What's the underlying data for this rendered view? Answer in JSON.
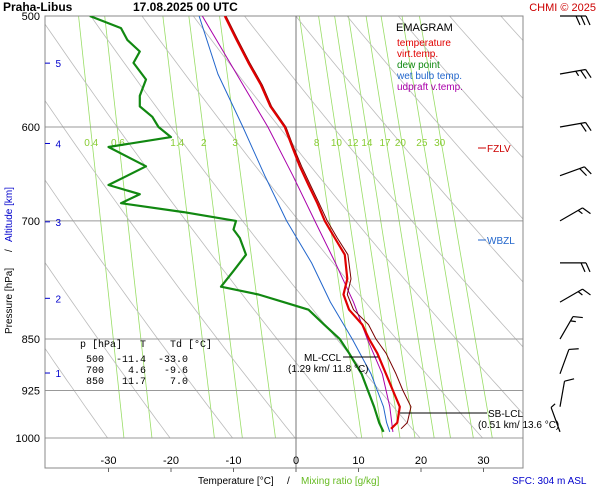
{
  "header": {
    "station": "Praha-Libus",
    "datetime": "17.08.2025 00 UTC",
    "copyright": "CHMI © 2025"
  },
  "legend": {
    "title": "EMAGRAM",
    "items": [
      {
        "label": "temperature",
        "color": "#e00000"
      },
      {
        "label": "virt.temp.",
        "color": "#e00000"
      },
      {
        "label": "dew point",
        "color": "#118811"
      },
      {
        "label": "wet bulb temp.",
        "color": "#2266cc"
      },
      {
        "label": "udpraft v.temp.",
        "color": "#aa00aa"
      }
    ]
  },
  "axes": {
    "xlabel_temp": "Temperature [°C]",
    "xlabel_sep": "/",
    "xlabel_mix": "Mixing ratio [g/kg]",
    "ylabel_pres": "Pressure [hPa]",
    "ylabel_sep": "/",
    "ylabel_alt": "Altitude [km]",
    "sfc": "SFC: 304 m ASL"
  },
  "markers": {
    "fzlv": "FZLV",
    "wbzl": "WBZL",
    "ml_ccl_title": "ML-CCL",
    "ml_ccl_values": "(1.29 km/ 11.8 °C)",
    "sb_lcl_title": "SB-LCL",
    "sb_lcl_values": "(0.51 km/ 13.6 °C)"
  },
  "table": {
    "header": "p [hPa]   T    Td [°C]",
    "rows": [
      "500  -11.4  -33.0",
      "700    4.6   -9.6",
      "850   11.7    7.0"
    ]
  },
  "colors": {
    "temperature": "#e00000",
    "virt_temp": "#7a0000",
    "dew_point": "#118811",
    "wet_bulb": "#2266cc",
    "updraft": "#aa00aa",
    "mixing_lines": "#99dd66",
    "mixing_labels": "#88cc33",
    "dry_adiabats": "#bbbbbb",
    "grid": "#999999",
    "altitude": "#0000cc",
    "fzlv": "#cc0000",
    "wbzl": "#2266cc"
  },
  "chart_data": {
    "type": "line",
    "pressure_ticks": [
      500,
      600,
      700,
      850,
      925,
      1000
    ],
    "temperature_ticks": [
      -30,
      -20,
      -10,
      0,
      10,
      20,
      30
    ],
    "altitude_ticks_km": [
      1,
      2,
      3,
      4,
      5
    ],
    "mixing_ratio_labels": [
      "0.4",
      "0.6",
      "1.4",
      "2",
      "3",
      "8",
      "10",
      "12",
      "14",
      "17",
      "20",
      "25",
      "30"
    ],
    "mixing_ratio_values": [
      0.4,
      0.6,
      1.4,
      2,
      3,
      8,
      10,
      12,
      14,
      17,
      20,
      25,
      30
    ],
    "xlim": [
      -38,
      34
    ],
    "ylim": [
      1000,
      500
    ],
    "y_scale": "log",
    "series": [
      {
        "name": "temperature",
        "points": [
          [
            500,
            -11.4
          ],
          [
            520,
            -9.5
          ],
          [
            540,
            -7.6
          ],
          [
            560,
            -5.6
          ],
          [
            580,
            -4.1
          ],
          [
            600,
            -1.8
          ],
          [
            620,
            -0.6
          ],
          [
            640,
            0.6
          ],
          [
            660,
            2.0
          ],
          [
            680,
            3.4
          ],
          [
            700,
            4.6
          ],
          [
            720,
            6.2
          ],
          [
            740,
            7.8
          ],
          [
            770,
            8.2
          ],
          [
            790,
            7.6
          ],
          [
            810,
            8.5
          ],
          [
            830,
            10.6
          ],
          [
            850,
            11.7
          ],
          [
            870,
            13.0
          ],
          [
            900,
            14.4
          ],
          [
            925,
            15.5
          ],
          [
            950,
            16.6
          ],
          [
            975,
            16.2
          ],
          [
            985,
            15.2
          ]
        ]
      },
      {
        "name": "virt.temp.",
        "points": [
          [
            500,
            -11.2
          ],
          [
            520,
            -9.3
          ],
          [
            540,
            -7.4
          ],
          [
            560,
            -5.4
          ],
          [
            580,
            -3.9
          ],
          [
            600,
            -1.6
          ],
          [
            620,
            -0.4
          ],
          [
            640,
            0.9
          ],
          [
            660,
            2.3
          ],
          [
            680,
            3.7
          ],
          [
            700,
            5.0
          ],
          [
            720,
            6.6
          ],
          [
            740,
            8.3
          ],
          [
            770,
            8.8
          ],
          [
            790,
            8.2
          ],
          [
            810,
            9.2
          ],
          [
            830,
            11.6
          ],
          [
            850,
            12.8
          ],
          [
            870,
            14.4
          ],
          [
            900,
            16.0
          ],
          [
            925,
            17.1
          ],
          [
            950,
            18.4
          ],
          [
            975,
            17.8
          ],
          [
            985,
            16.8
          ]
        ]
      },
      {
        "name": "dew point",
        "points": [
          [
            500,
            -33.0
          ],
          [
            510,
            -28.0
          ],
          [
            520,
            -27.0
          ],
          [
            530,
            -25.0
          ],
          [
            540,
            -26.0
          ],
          [
            555,
            -24.0
          ],
          [
            570,
            -25.0
          ],
          [
            580,
            -25.0
          ],
          [
            590,
            -23.0
          ],
          [
            600,
            -22.0
          ],
          [
            610,
            -20.0
          ],
          [
            620,
            -30.0
          ],
          [
            630,
            -27.0
          ],
          [
            640,
            -24.0
          ],
          [
            650,
            -27.0
          ],
          [
            660,
            -30.0
          ],
          [
            670,
            -25.0
          ],
          [
            680,
            -28.0
          ],
          [
            690,
            -18.0
          ],
          [
            700,
            -9.6
          ],
          [
            710,
            -10.0
          ],
          [
            720,
            -9.0
          ],
          [
            740,
            -8.0
          ],
          [
            760,
            -10.0
          ],
          [
            780,
            -12.0
          ],
          [
            790,
            -6.0
          ],
          [
            800,
            -2.0
          ],
          [
            810,
            2.0
          ],
          [
            830,
            4.5
          ],
          [
            850,
            7.0
          ],
          [
            870,
            8.5
          ],
          [
            900,
            10.5
          ],
          [
            925,
            11.5
          ],
          [
            950,
            12.5
          ],
          [
            975,
            13.3
          ],
          [
            990,
            14.0
          ]
        ]
      },
      {
        "name": "wet bulb temp.",
        "points": [
          [
            500,
            -15.5
          ],
          [
            550,
            -12.5
          ],
          [
            600,
            -8.5
          ],
          [
            650,
            -5.0
          ],
          [
            700,
            -1.5
          ],
          [
            750,
            2.5
          ],
          [
            800,
            5.5
          ],
          [
            850,
            9.0
          ],
          [
            900,
            12.0
          ],
          [
            925,
            13.0
          ],
          [
            950,
            14.0
          ],
          [
            975,
            14.5
          ],
          [
            990,
            15.0
          ]
        ]
      },
      {
        "name": "udpraft v.temp.",
        "points": [
          [
            500,
            -15.0
          ],
          [
            550,
            -9.5
          ],
          [
            600,
            -4.5
          ],
          [
            650,
            -0.5
          ],
          [
            700,
            3.0
          ],
          [
            750,
            6.3
          ],
          [
            800,
            9.2
          ],
          [
            850,
            11.4
          ],
          [
            900,
            13.8
          ],
          [
            950,
            15.0
          ],
          [
            990,
            15.5
          ]
        ]
      }
    ],
    "wind_barbs": [
      {
        "p": 500,
        "dir": 270,
        "kt": 30
      },
      {
        "p": 550,
        "dir": 260,
        "kt": 25
      },
      {
        "p": 600,
        "dir": 260,
        "kt": 20
      },
      {
        "p": 650,
        "dir": 250,
        "kt": 20
      },
      {
        "p": 700,
        "dir": 240,
        "kt": 15
      },
      {
        "p": 750,
        "dir": 270,
        "kt": 20
      },
      {
        "p": 800,
        "dir": 240,
        "kt": 15
      },
      {
        "p": 850,
        "dir": 210,
        "kt": 15
      },
      {
        "p": 900,
        "dir": 200,
        "kt": 10
      },
      {
        "p": 950,
        "dir": 190,
        "kt": 10
      },
      {
        "p": 990,
        "dir": 160,
        "kt": 5
      }
    ]
  }
}
